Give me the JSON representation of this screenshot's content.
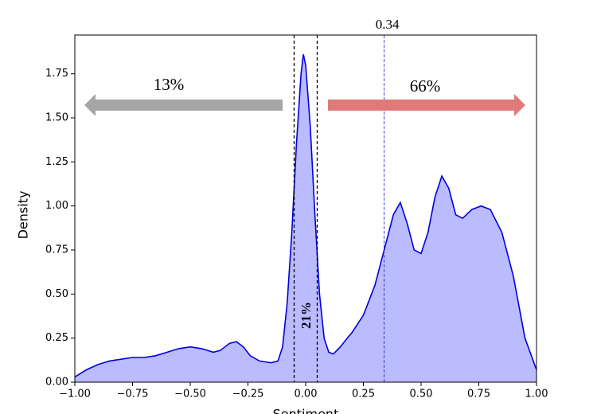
{
  "chart_data": {
    "type": "area",
    "xlabel": "Sentiment",
    "ylabel": "Density",
    "x": [
      -1.0,
      -0.95,
      -0.9,
      -0.85,
      -0.8,
      -0.75,
      -0.7,
      -0.65,
      -0.6,
      -0.55,
      -0.5,
      -0.45,
      -0.4,
      -0.37,
      -0.33,
      -0.3,
      -0.27,
      -0.24,
      -0.2,
      -0.15,
      -0.12,
      -0.1,
      -0.08,
      -0.06,
      -0.04,
      -0.02,
      -0.01,
      0.0,
      0.02,
      0.04,
      0.06,
      0.08,
      0.1,
      0.12,
      0.15,
      0.18,
      0.2,
      0.25,
      0.3,
      0.35,
      0.38,
      0.41,
      0.44,
      0.47,
      0.5,
      0.53,
      0.56,
      0.59,
      0.62,
      0.65,
      0.68,
      0.72,
      0.76,
      0.8,
      0.85,
      0.9,
      0.95,
      1.0
    ],
    "values": [
      0.03,
      0.07,
      0.1,
      0.12,
      0.13,
      0.14,
      0.14,
      0.15,
      0.17,
      0.19,
      0.2,
      0.19,
      0.17,
      0.18,
      0.22,
      0.23,
      0.2,
      0.15,
      0.12,
      0.11,
      0.12,
      0.2,
      0.45,
      0.85,
      1.35,
      1.75,
      1.86,
      1.8,
      1.45,
      0.95,
      0.5,
      0.25,
      0.17,
      0.16,
      0.2,
      0.25,
      0.28,
      0.38,
      0.55,
      0.8,
      0.95,
      1.02,
      0.9,
      0.75,
      0.73,
      0.85,
      1.05,
      1.17,
      1.1,
      0.95,
      0.93,
      0.98,
      1.0,
      0.98,
      0.85,
      0.6,
      0.25,
      0.07
    ],
    "color": "#0000dd",
    "fill": "#bbbbff",
    "xlim": [
      -1.0,
      1.0
    ],
    "ylim": [
      0,
      1.97
    ],
    "xticks": [
      {
        "value": -1.0,
        "label": "−1.00"
      },
      {
        "value": -0.75,
        "label": "−0.75"
      },
      {
        "value": -0.5,
        "label": "−0.50"
      },
      {
        "value": -0.25,
        "label": "−0.25"
      },
      {
        "value": 0.0,
        "label": "0.00"
      },
      {
        "value": 0.25,
        "label": "0.25"
      },
      {
        "value": 0.5,
        "label": "0.50"
      },
      {
        "value": 0.75,
        "label": "0.75"
      },
      {
        "value": 1.0,
        "label": "1.00"
      }
    ],
    "yticks": [
      {
        "value": 0.0,
        "label": "0.00"
      },
      {
        "value": 0.25,
        "label": "0.25"
      },
      {
        "value": 0.5,
        "label": "0.50"
      },
      {
        "value": 0.75,
        "label": "0.75"
      },
      {
        "value": 1.0,
        "label": "1.00"
      },
      {
        "value": 1.25,
        "label": "1.25"
      },
      {
        "value": 1.5,
        "label": "1.50"
      },
      {
        "value": 1.75,
        "label": "1.75"
      }
    ],
    "neutral_bounds": [
      -0.05,
      0.05
    ],
    "threshold": {
      "value": 0.34,
      "label": "0.34"
    },
    "annotations": [
      "13%",
      "21%",
      "66%"
    ]
  }
}
